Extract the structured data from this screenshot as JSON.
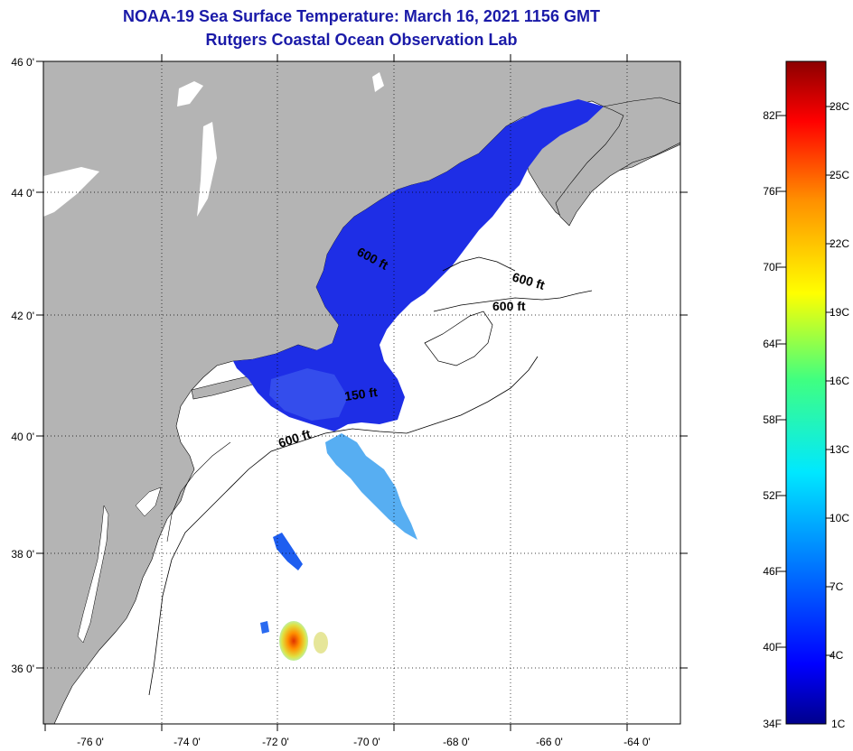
{
  "title": {
    "line1": "NOAA-19 Sea Surface Temperature:  March 16, 2021 1156 GMT",
    "line2": "Rutgers Coastal Ocean Observation Lab"
  },
  "map": {
    "lat_labels": [
      "46 0'",
      "44 0'",
      "42 0'",
      "40 0'",
      "38 0'",
      "36 0'"
    ],
    "lon_labels": [
      "-76 0'",
      "-74 0'",
      "-72 0'",
      "-70 0'",
      "-68 0'",
      "-66 0'",
      "-64 0'"
    ],
    "isobath_labels": [
      "600 ft",
      "600 ft",
      "600 ft",
      "150 ft",
      "600 ft"
    ],
    "colors": {
      "land": "#b4b4b4",
      "cold": "#1e2ee6",
      "frame": "#000000"
    }
  },
  "colorbar": {
    "fahrenheit": [
      "82F",
      "76F",
      "70F",
      "64F",
      "58F",
      "52F",
      "46F",
      "40F",
      "34F"
    ],
    "celsius": [
      "28C",
      "25C",
      "22C",
      "19C",
      "16C",
      "13C",
      "10C",
      "7C",
      "4C",
      "1C"
    ],
    "stops": [
      "#00008c",
      "#0000ff",
      "#0080ff",
      "#00e8ff",
      "#40ff80",
      "#ffff00",
      "#ff9000",
      "#ff0000",
      "#8c0000"
    ]
  }
}
